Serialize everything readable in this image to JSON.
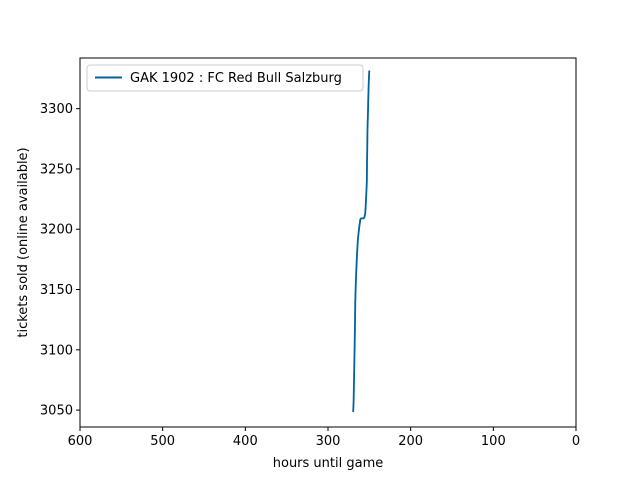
{
  "chart_data": {
    "type": "line",
    "title": "",
    "xlabel": "hours until game",
    "ylabel": "tickets sold (online available)",
    "xlim": [
      600,
      0
    ],
    "ylim": [
      3036,
      3342
    ],
    "x_inverted": true,
    "xticks": [
      600,
      500,
      400,
      300,
      200,
      100,
      0
    ],
    "yticks": [
      3050,
      3100,
      3150,
      3200,
      3250,
      3300
    ],
    "grid": false,
    "legend": "top-left",
    "series": [
      {
        "name": "GAK 1902 : FC Red Bull Salzburg",
        "color": "#00639a",
        "x": [
          269.5,
          269,
          268.5,
          268,
          267.5,
          267,
          266.5,
          266,
          265.5,
          265,
          264.5,
          264,
          263.5,
          263,
          262.5,
          262,
          261.5,
          261,
          260,
          259,
          258.5,
          258,
          257,
          256,
          255,
          254.5,
          254,
          253.5,
          253,
          252.8,
          252.5,
          252.3,
          252,
          251.7,
          251.4,
          251,
          250.7,
          250.4,
          250.1,
          249.9
        ],
        "y": [
          3049,
          3058,
          3075,
          3095,
          3115,
          3140,
          3152,
          3162,
          3170,
          3178,
          3184,
          3190,
          3194,
          3197,
          3200,
          3203,
          3205,
          3208,
          3209,
          3209,
          3209,
          3209,
          3209,
          3210,
          3213,
          3218,
          3225,
          3232,
          3240,
          3255,
          3268,
          3280,
          3289,
          3295,
          3305,
          3315,
          3322,
          3327,
          3331,
          3331
        ]
      }
    ]
  }
}
